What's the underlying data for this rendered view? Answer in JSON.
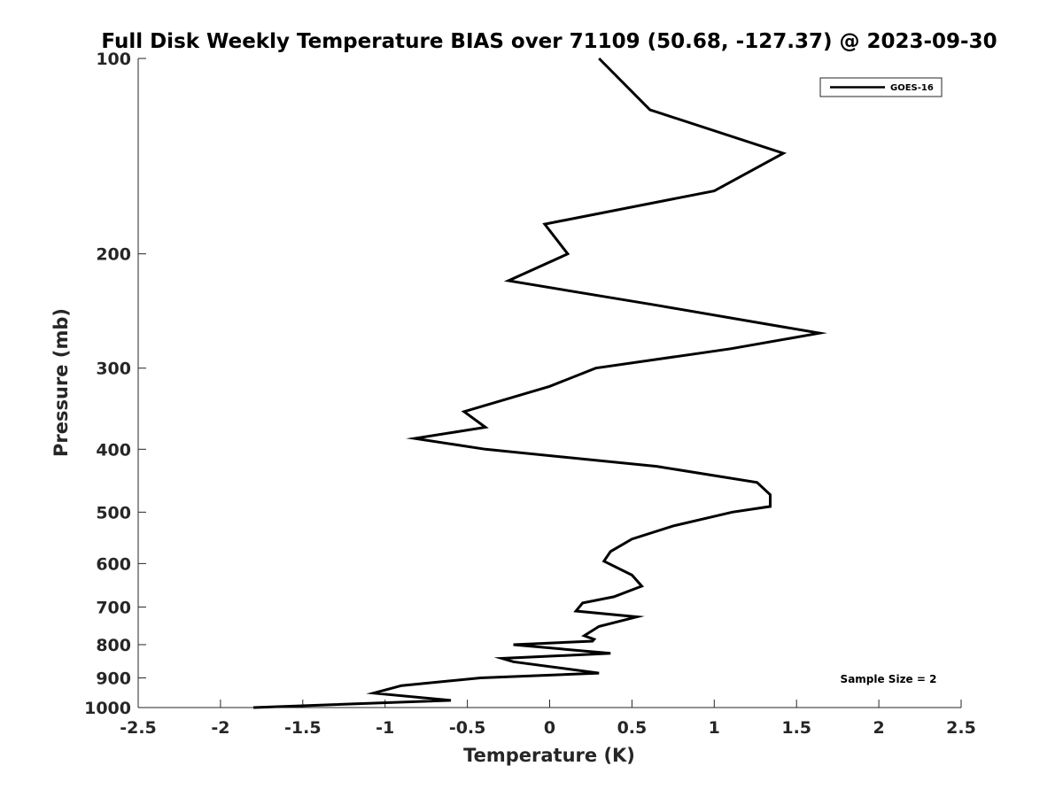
{
  "chart_data": {
    "type": "line",
    "title": "Full Disk Weekly Temperature BIAS over 71109 (50.68, -127.37) @ 2023-09-30",
    "xlabel": "Temperature (K)",
    "ylabel": "Pressure (mb)",
    "xlim": [
      -2.5,
      2.5
    ],
    "ylim": [
      100,
      1000
    ],
    "y_scale": "log",
    "y_reversed": true,
    "xticks": [
      -2.5,
      -2,
      -1.5,
      -1,
      -0.5,
      0,
      0.5,
      1,
      1.5,
      2,
      2.5
    ],
    "xtick_labels": [
      "-2.5",
      "-2",
      "-1.5",
      "-1",
      "-0.5",
      "0",
      "0.5",
      "1",
      "1.5",
      "2",
      "2.5"
    ],
    "yticks": [
      100,
      200,
      300,
      400,
      500,
      600,
      700,
      800,
      900,
      1000
    ],
    "ytick_labels": [
      "100",
      "200",
      "300",
      "400",
      "500",
      "600",
      "700",
      "800",
      "900",
      "1000"
    ],
    "grid": false,
    "legend_position": "top-right",
    "annotation": "Sample Size = 2",
    "series": [
      {
        "name": "GOES-16",
        "color": "#000000",
        "points": [
          {
            "x": 0.3,
            "y": 100
          },
          {
            "x": 0.61,
            "y": 120
          },
          {
            "x": 1.42,
            "y": 140
          },
          {
            "x": 1.0,
            "y": 160
          },
          {
            "x": -0.03,
            "y": 180
          },
          {
            "x": 0.11,
            "y": 200
          },
          {
            "x": -0.25,
            "y": 220
          },
          {
            "x": 0.65,
            "y": 240
          },
          {
            "x": 1.64,
            "y": 265
          },
          {
            "x": 1.1,
            "y": 280
          },
          {
            "x": 0.28,
            "y": 300
          },
          {
            "x": 0.0,
            "y": 320
          },
          {
            "x": -0.52,
            "y": 350
          },
          {
            "x": -0.39,
            "y": 370
          },
          {
            "x": -0.82,
            "y": 385
          },
          {
            "x": -0.39,
            "y": 400
          },
          {
            "x": 0.65,
            "y": 425
          },
          {
            "x": 1.26,
            "y": 450
          },
          {
            "x": 1.34,
            "y": 470
          },
          {
            "x": 1.34,
            "y": 490
          },
          {
            "x": 1.11,
            "y": 500
          },
          {
            "x": 0.75,
            "y": 525
          },
          {
            "x": 0.5,
            "y": 550
          },
          {
            "x": 0.37,
            "y": 575
          },
          {
            "x": 0.33,
            "y": 595
          },
          {
            "x": 0.5,
            "y": 625
          },
          {
            "x": 0.56,
            "y": 650
          },
          {
            "x": 0.39,
            "y": 675
          },
          {
            "x": 0.2,
            "y": 690
          },
          {
            "x": 0.16,
            "y": 710
          },
          {
            "x": 0.53,
            "y": 725
          },
          {
            "x": 0.3,
            "y": 750
          },
          {
            "x": 0.21,
            "y": 775
          },
          {
            "x": 0.27,
            "y": 785
          },
          {
            "x": 0.26,
            "y": 790
          },
          {
            "x": -0.22,
            "y": 800
          },
          {
            "x": 0.37,
            "y": 825
          },
          {
            "x": -0.29,
            "y": 840
          },
          {
            "x": -0.22,
            "y": 850
          },
          {
            "x": 0.3,
            "y": 885
          },
          {
            "x": -0.42,
            "y": 900
          },
          {
            "x": -0.9,
            "y": 925
          },
          {
            "x": -1.07,
            "y": 950
          },
          {
            "x": -0.6,
            "y": 975
          },
          {
            "x": -1.8,
            "y": 1000
          }
        ]
      }
    ]
  }
}
